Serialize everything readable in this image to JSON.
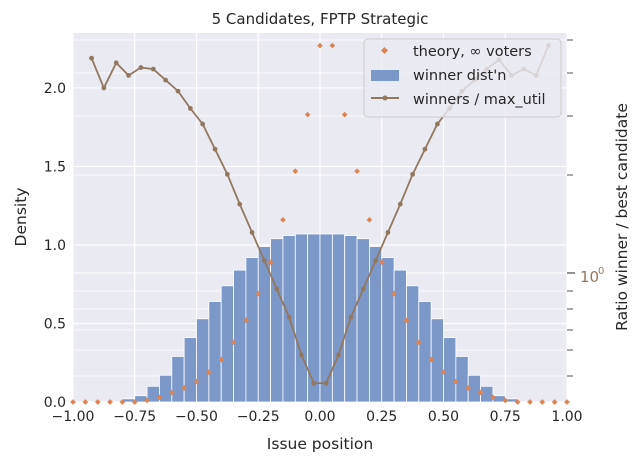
{
  "chart_data": {
    "title": "5 Candidates, FPTP Strategic",
    "xlabel": "Issue position",
    "ylabel": "Density",
    "y2label": "Ratio winner / best candidate",
    "xlim": [
      -1.0,
      1.0
    ],
    "ylim": [
      0.0,
      2.35
    ],
    "x_ticks": [
      "−1.00",
      "−0.75",
      "−0.50",
      "−0.25",
      "0.00",
      "0.25",
      "0.50",
      "0.75",
      "1.00"
    ],
    "y_ticks": [
      "0.0",
      "0.5",
      "1.0",
      "1.5",
      "2.0"
    ],
    "y2_tick_label": "10",
    "y2_tick_label_exp": "0",
    "grid": true,
    "legend": {
      "position": "top-right",
      "entries": [
        "theory, ∞ voters",
        "winner dist'n",
        "winners / max_util"
      ]
    },
    "colors": {
      "bars": "#7b98c9",
      "theory": "#dd8452",
      "ratio": "#937860",
      "background": "#eaeaf2"
    },
    "series": [
      {
        "name": "winner dist'n",
        "type": "bar",
        "bin_centers": [
          -0.975,
          -0.925,
          -0.875,
          -0.825,
          -0.775,
          -0.725,
          -0.675,
          -0.625,
          -0.575,
          -0.525,
          -0.475,
          -0.425,
          -0.375,
          -0.325,
          -0.275,
          -0.225,
          -0.175,
          -0.125,
          -0.075,
          -0.025,
          0.025,
          0.075,
          0.125,
          0.175,
          0.225,
          0.275,
          0.325,
          0.375,
          0.425,
          0.475,
          0.525,
          0.575,
          0.625,
          0.675,
          0.725,
          0.775,
          0.825,
          0.875,
          0.925,
          0.975
        ],
        "values": [
          0,
          0,
          0,
          0,
          0.02,
          0.04,
          0.1,
          0.17,
          0.29,
          0.41,
          0.53,
          0.64,
          0.74,
          0.84,
          0.92,
          0.99,
          1.04,
          1.06,
          1.07,
          1.07,
          1.07,
          1.07,
          1.06,
          1.04,
          0.99,
          0.92,
          0.84,
          0.74,
          0.64,
          0.53,
          0.41,
          0.29,
          0.17,
          0.1,
          0.04,
          0.02,
          0,
          0,
          0,
          0
        ]
      },
      {
        "name": "theory, ∞ voters",
        "type": "scatter",
        "x": [
          -1.0,
          -0.95,
          -0.9,
          -0.85,
          -0.8,
          -0.75,
          -0.7,
          -0.65,
          -0.6,
          -0.55,
          -0.5,
          -0.45,
          -0.4,
          -0.35,
          -0.3,
          -0.25,
          -0.2,
          -0.15,
          -0.1,
          -0.05,
          0.0,
          0.05,
          0.1,
          0.15,
          0.2,
          0.25,
          0.3,
          0.35,
          0.4,
          0.45,
          0.5,
          0.55,
          0.6,
          0.65,
          0.7,
          0.75,
          0.8,
          0.85,
          0.9,
          0.95,
          1.0
        ],
        "y": [
          0,
          0,
          0,
          0,
          0,
          0,
          0.01,
          0.03,
          0.06,
          0.09,
          0.13,
          0.19,
          0.27,
          0.38,
          0.52,
          0.69,
          0.89,
          1.16,
          1.47,
          1.83,
          2.27,
          2.27,
          1.83,
          1.47,
          1.16,
          0.89,
          0.69,
          0.52,
          0.38,
          0.27,
          0.19,
          0.13,
          0.09,
          0.06,
          0.03,
          0.01,
          0,
          0,
          0,
          0,
          0
        ]
      },
      {
        "name": "winners / max_util",
        "type": "line",
        "y_axis": "right-log",
        "x": [
          -0.925,
          -0.875,
          -0.825,
          -0.775,
          -0.725,
          -0.675,
          -0.625,
          -0.575,
          -0.525,
          -0.475,
          -0.425,
          -0.375,
          -0.325,
          -0.275,
          -0.225,
          -0.175,
          -0.125,
          -0.075,
          -0.025,
          0.025,
          0.075,
          0.125,
          0.175,
          0.225,
          0.275,
          0.325,
          0.375,
          0.425,
          0.475,
          0.525,
          0.575,
          0.625,
          0.675,
          0.725,
          0.775,
          0.825,
          0.875,
          0.925
        ],
        "y": [
          2.19,
          2.0,
          2.16,
          2.08,
          2.13,
          2.12,
          2.05,
          1.98,
          1.87,
          1.77,
          1.61,
          1.45,
          1.26,
          1.08,
          0.9,
          0.72,
          0.54,
          0.3,
          0.12,
          0.12,
          0.3,
          0.54,
          0.72,
          0.9,
          1.08,
          1.26,
          1.45,
          1.61,
          1.77,
          1.87,
          1.98,
          2.05,
          2.12,
          2.18,
          2.08,
          2.12,
          2.08,
          2.27
        ]
      }
    ]
  }
}
